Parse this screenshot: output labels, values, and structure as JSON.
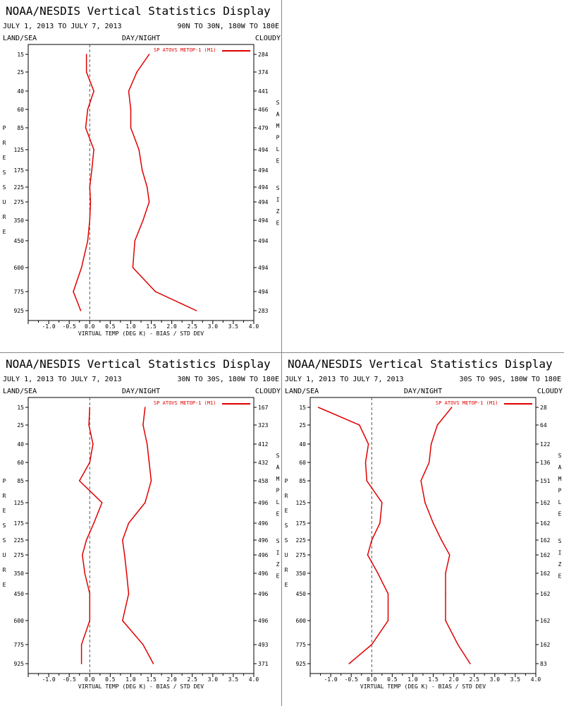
{
  "panel_template": {
    "title": "NOAA/NESDIS Vertical Statistics Display",
    "date_range": "JULY 1, 2013 TO JULY 7, 2013",
    "left_label": "LAND/SEA",
    "center_label": "DAY/NIGHT",
    "right_label": "CLOUDY",
    "ylabel_vertical": "PRESSURE",
    "sample_label_vertical": "SAMPLE SIZE",
    "xlabel": "VIRTUAL TEMP (DEG K) - BIAS / STD DEV",
    "legend": "SP ATOVS METOP-1 (M1)"
  },
  "colors": {
    "series": "#e00000",
    "axis": "#000000",
    "zero_line": "#555555",
    "divider": "#888888"
  },
  "chart_data": [
    {
      "type": "line",
      "region": "90N TO 30N, 180W TO 180E",
      "pressure_levels": [
        15,
        25,
        40,
        60,
        85,
        125,
        175,
        225,
        275,
        350,
        450,
        600,
        775,
        925
      ],
      "sample_size": [
        284,
        374,
        441,
        466,
        479,
        494,
        494,
        494,
        494,
        494,
        494,
        494,
        494,
        283
      ],
      "xlim": [
        -1.5,
        4.0
      ],
      "xticks": [
        "-1.0",
        "-0.5",
        "0.0",
        "0.5",
        "1.0",
        "1.5",
        "2.0",
        "2.5",
        "3.0",
        "3.5",
        "4.0"
      ],
      "series": [
        {
          "name": "bias",
          "values": [
            -0.08,
            -0.08,
            0.1,
            -0.05,
            -0.1,
            0.1,
            0.05,
            0.0,
            0.02,
            0.0,
            -0.05,
            -0.2,
            -0.4,
            -0.22
          ]
        },
        {
          "name": "std_dev",
          "values": [
            1.45,
            1.15,
            0.95,
            1.0,
            1.0,
            1.2,
            1.28,
            1.4,
            1.45,
            1.3,
            1.1,
            1.05,
            1.6,
            2.6
          ]
        }
      ]
    },
    {
      "type": "line",
      "region": "30N TO 30S, 180W TO 180E",
      "pressure_levels": [
        15,
        25,
        40,
        60,
        85,
        125,
        175,
        225,
        275,
        350,
        450,
        600,
        775,
        925
      ],
      "sample_size": [
        167,
        323,
        412,
        432,
        458,
        496,
        496,
        496,
        496,
        496,
        496,
        496,
        493,
        371
      ],
      "xlim": [
        -1.5,
        4.0
      ],
      "xticks": [
        "-1.0",
        "-0.5",
        "0.0",
        "0.5",
        "1.0",
        "1.5",
        "2.0",
        "2.5",
        "3.0",
        "3.5",
        "4.0"
      ],
      "series": [
        {
          "name": "bias",
          "values": [
            0.0,
            -0.02,
            0.08,
            0.0,
            -0.25,
            0.3,
            0.1,
            -0.08,
            -0.18,
            -0.12,
            0.0,
            0.0,
            -0.2,
            -0.2
          ]
        },
        {
          "name": "std_dev",
          "values": [
            1.35,
            1.3,
            1.4,
            1.45,
            1.5,
            1.35,
            0.95,
            0.8,
            0.85,
            0.9,
            0.95,
            0.8,
            1.3,
            1.55
          ]
        }
      ]
    },
    {
      "type": "line",
      "region": "30S TO 90S, 180W TO 180E",
      "pressure_levels": [
        15,
        25,
        40,
        60,
        85,
        125,
        175,
        225,
        275,
        350,
        450,
        600,
        775,
        925
      ],
      "sample_size": [
        28,
        64,
        122,
        136,
        151,
        162,
        162,
        162,
        162,
        162,
        162,
        162,
        162,
        83
      ],
      "xlim": [
        -1.5,
        4.0
      ],
      "xticks": [
        "-1.0",
        "-0.5",
        "0.0",
        "0.5",
        "1.0",
        "1.5",
        "2.0",
        "2.5",
        "3.0",
        "3.5",
        "4.0"
      ],
      "series": [
        {
          "name": "bias",
          "values": [
            -1.3,
            -0.3,
            -0.08,
            -0.15,
            -0.12,
            0.25,
            0.2,
            0.0,
            -0.1,
            0.15,
            0.4,
            0.4,
            0.0,
            -0.55
          ]
        },
        {
          "name": "std_dev",
          "values": [
            1.95,
            1.6,
            1.45,
            1.4,
            1.2,
            1.3,
            1.5,
            1.7,
            1.9,
            1.8,
            1.8,
            1.8,
            2.1,
            2.4
          ]
        }
      ]
    }
  ]
}
